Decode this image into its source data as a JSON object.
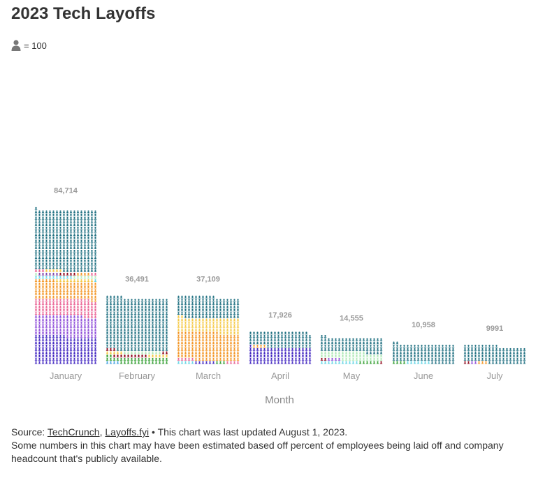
{
  "title": "2023 Tech Layoffs",
  "legend": {
    "icon": "person-icon",
    "label": "= 100"
  },
  "source": {
    "prefix": "Source: ",
    "link1": "TechCrunch",
    "separator": ", ",
    "link2": "Layoffs.fyi",
    "suffix": " • This chart was last updated August 1, 2023.",
    "note": "Some numbers in this chart may have been estimated based off percent of employees being laid off and company headcount that's publicly available."
  },
  "chart_data": {
    "type": "bar",
    "subtype": "isotype-stacked",
    "unit_per_icon": 100,
    "categories": [
      "January",
      "February",
      "March",
      "April",
      "May",
      "June",
      "July"
    ],
    "totals": [
      84714,
      36491,
      37109,
      17926,
      14555,
      10958,
      9991
    ],
    "total_labels": [
      "84,714",
      "36,491",
      "37,109",
      "17,926",
      "14,555",
      "10,958",
      "9991"
    ],
    "xlabel": "Month",
    "ylabel": "",
    "segments": [
      [
        {
          "color": "#3b1fbf",
          "value": 15300
        },
        {
          "color": "#8b48d8",
          "value": 11300
        },
        {
          "color": "#ea5d90",
          "value": 9200
        },
        {
          "color": "#f3931f",
          "value": 9800
        },
        {
          "color": "#f5c842",
          "value": 1100
        },
        {
          "color": "#5fd3e4",
          "value": 1200
        },
        {
          "color": "#aee9b5",
          "value": 800
        },
        {
          "color": "#7b3fa6",
          "value": 600
        },
        {
          "color": "#8b0016",
          "value": 500
        },
        {
          "color": "#f3931f",
          "value": 400
        },
        {
          "color": "#ea5d90",
          "value": 500
        },
        {
          "color": "#f5c842",
          "value": 500
        },
        {
          "color": "#1e6f80",
          "value": 33514
        }
      ],
      [
        {
          "color": "#3b9de0",
          "value": 400
        },
        {
          "color": "#2a9a28",
          "value": 3400
        },
        {
          "color": "#8b0016",
          "value": 1000
        },
        {
          "color": "#f5c842",
          "value": 1100
        },
        {
          "color": "#aee9b5",
          "value": 1100
        },
        {
          "color": "#8b0016",
          "value": 500
        },
        {
          "color": "#1e6f80",
          "value": 28991
        }
      ],
      [
        {
          "color": "#5fd3e4",
          "value": 500
        },
        {
          "color": "#3b1fbf",
          "value": 600
        },
        {
          "color": "#2a9a28",
          "value": 300
        },
        {
          "color": "#ea5d90",
          "value": 900
        },
        {
          "color": "#f3931f",
          "value": 15100
        },
        {
          "color": "#f5c842",
          "value": 8000
        },
        {
          "color": "#1e6f80",
          "value": 11709
        }
      ],
      [
        {
          "color": "#3b1fbf",
          "value": 9100
        },
        {
          "color": "#f3931f",
          "value": 400
        },
        {
          "color": "#1e6f80",
          "value": 8426
        }
      ],
      [
        {
          "color": "#5fd3e4",
          "value": 1100
        },
        {
          "color": "#2a9a28",
          "value": 600
        },
        {
          "color": "#8b0016",
          "value": 300
        },
        {
          "color": "#8b48d8",
          "value": 400
        },
        {
          "color": "#aee9b5",
          "value": 4300
        },
        {
          "color": "#1e6f80",
          "value": 7855
        }
      ],
      [
        {
          "color": "#2a9a28",
          "value": 400
        },
        {
          "color": "#5fd3e4",
          "value": 700
        },
        {
          "color": "#1e6f80",
          "value": 9858
        }
      ],
      [
        {
          "color": "#8b0016",
          "value": 200
        },
        {
          "color": "#8b48d8",
          "value": 200
        },
        {
          "color": "#f3931f",
          "value": 300
        },
        {
          "color": "#1e6f80",
          "value": 9291
        }
      ]
    ],
    "colors": {
      "label": "#999999",
      "axis_title": "#888888"
    }
  }
}
